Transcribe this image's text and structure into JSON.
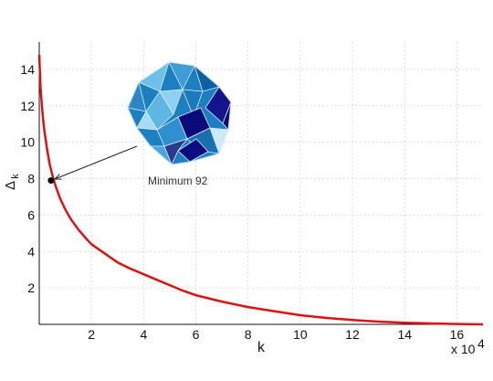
{
  "chart_data": {
    "type": "line",
    "title": "",
    "xlabel": "k",
    "ylabel_main": "Δ",
    "ylabel_sub": "k",
    "x_scale_label": "x 10",
    "x_scale_exp": "4",
    "xlim": [
      0,
      17
    ],
    "ylim": [
      0,
      15.5
    ],
    "x_ticks": [
      2,
      4,
      6,
      8,
      10,
      12,
      14,
      16
    ],
    "y_ticks": [
      2,
      4,
      6,
      8,
      10,
      12,
      14
    ],
    "grid": true,
    "series_color": "#e01010",
    "series": [
      {
        "x": [
          0.0,
          0.05,
          0.1,
          0.15,
          0.2,
          0.3,
          0.4,
          0.5,
          0.6,
          0.8,
          1.0,
          1.2,
          1.5,
          1.8,
          2.0,
          2.5,
          3.0,
          3.5,
          4.0,
          4.5,
          5.0,
          5.5,
          6.0,
          7.0,
          8.0,
          9.0,
          10.0,
          11.0,
          12.0,
          13.0,
          14.0,
          15.0,
          16.0,
          17.0
        ],
        "y": [
          14.8,
          13.0,
          12.0,
          11.2,
          10.6,
          9.6,
          8.8,
          8.2,
          7.7,
          6.9,
          6.3,
          5.8,
          5.2,
          4.7,
          4.4,
          3.9,
          3.4,
          3.05,
          2.75,
          2.45,
          2.15,
          1.85,
          1.6,
          1.25,
          0.95,
          0.72,
          0.5,
          0.35,
          0.24,
          0.15,
          0.09,
          0.05,
          0.02,
          0.0
        ]
      }
    ],
    "marker": {
      "x": 0.45,
      "y": 7.9,
      "color": "#000000"
    },
    "annotation": {
      "text": "Minimum 92"
    }
  },
  "inset": {
    "name": "polyhedron",
    "colors": {
      "dark": "#0a0a7a",
      "blue": "#1c7fc0",
      "light": "#6fc0e8",
      "pale": "#cfe9f6",
      "navy": "#2b3a8e"
    }
  }
}
